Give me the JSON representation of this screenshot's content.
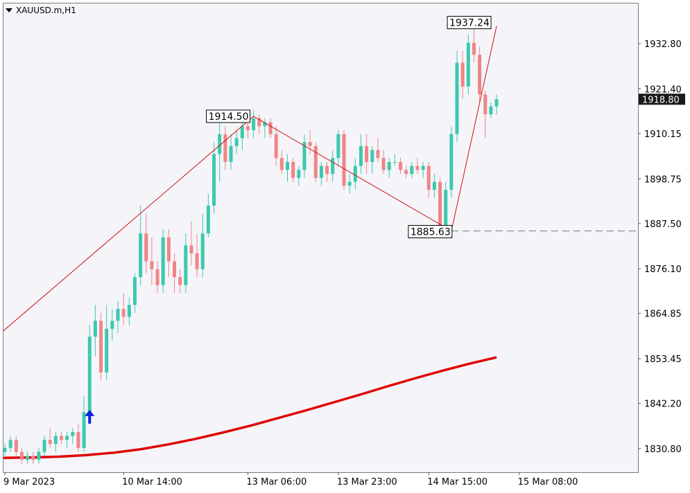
{
  "window": {
    "title": "XAUUSD.m,H1"
  },
  "colors": {
    "background": "#f4f4f9",
    "bull_candle": "#3cc9ad",
    "bear_candle": "#f08586",
    "moving_average": "#e00000",
    "zigzag": "#d01010",
    "current_price_bg": "#1a1a1a",
    "arrow": "#0a24d8",
    "level_line": "#7a7a7a"
  },
  "chart_data": {
    "type": "candlestick",
    "symbol": "XAUUSD.m",
    "timeframe": "H1",
    "ylim": [
      1824.5,
      1945.0
    ],
    "price_ticks": [
      "1932.80",
      "1921.40",
      "1910.15",
      "1898.75",
      "1887.50",
      "1876.10",
      "1864.85",
      "1853.45",
      "1842.20",
      "1830.80"
    ],
    "current_price": "1918.80",
    "time_labels": [
      {
        "label": "9 Mar 2023",
        "bar": 0
      },
      {
        "label": "10 Mar 14:00",
        "bar": 21
      },
      {
        "label": "13 Mar 06:00",
        "bar": 43
      },
      {
        "label": "13 Mar 23:00",
        "bar": 59
      },
      {
        "label": "14 Mar 15:00",
        "bar": 75
      },
      {
        "label": "15 Mar 08:00",
        "bar": 91
      }
    ],
    "candles": [
      [
        1830,
        1832,
        1829,
        1831
      ],
      [
        1831,
        1834,
        1830,
        1833
      ],
      [
        1833,
        1834,
        1829,
        1830
      ],
      [
        1830,
        1831,
        1827,
        1828
      ],
      [
        1828,
        1830,
        1827,
        1829
      ],
      [
        1829,
        1830,
        1827,
        1828
      ],
      [
        1828,
        1831,
        1827,
        1830
      ],
      [
        1830,
        1834,
        1829,
        1833
      ],
      [
        1833,
        1836,
        1831,
        1832
      ],
      [
        1832,
        1835,
        1830,
        1834
      ],
      [
        1834,
        1835,
        1832,
        1833
      ],
      [
        1833,
        1835,
        1831,
        1834
      ],
      [
        1834,
        1836,
        1832,
        1835
      ],
      [
        1835,
        1837,
        1830,
        1831
      ],
      [
        1831,
        1844,
        1830,
        1840
      ],
      [
        1840,
        1862,
        1838,
        1859
      ],
      [
        1859,
        1867,
        1854,
        1863
      ],
      [
        1863,
        1865,
        1848,
        1850
      ],
      [
        1850,
        1867,
        1848,
        1861
      ],
      [
        1861,
        1866,
        1858,
        1863
      ],
      [
        1863,
        1868,
        1860,
        1866
      ],
      [
        1866,
        1870,
        1862,
        1864
      ],
      [
        1864,
        1869,
        1862,
        1867
      ],
      [
        1867,
        1875,
        1865,
        1874
      ],
      [
        1874,
        1892,
        1872,
        1885
      ],
      [
        1885,
        1890,
        1875,
        1878
      ],
      [
        1878,
        1884,
        1872,
        1876
      ],
      [
        1876,
        1878,
        1870,
        1872
      ],
      [
        1872,
        1886,
        1870,
        1884
      ],
      [
        1884,
        1886,
        1874,
        1878
      ],
      [
        1878,
        1880,
        1870,
        1874
      ],
      [
        1874,
        1876,
        1870,
        1872
      ],
      [
        1872,
        1885,
        1870,
        1882
      ],
      [
        1882,
        1888,
        1877,
        1880
      ],
      [
        1880,
        1885,
        1874,
        1876
      ],
      [
        1876,
        1890,
        1874,
        1885
      ],
      [
        1885,
        1895,
        1884,
        1892
      ],
      [
        1892,
        1908,
        1890,
        1905
      ],
      [
        1905,
        1913,
        1898,
        1910
      ],
      [
        1910,
        1912,
        1901,
        1903
      ],
      [
        1903,
        1910,
        1901,
        1907
      ],
      [
        1907,
        1911,
        1905,
        1909
      ],
      [
        1909,
        1914,
        1906,
        1912
      ],
      [
        1912,
        1914.5,
        1909,
        1911
      ],
      [
        1911,
        1916,
        1909,
        1914
      ],
      [
        1914,
        1915,
        1910,
        1912
      ],
      [
        1912,
        1914,
        1909,
        1913
      ],
      [
        1913,
        1914,
        1909,
        1910
      ],
      [
        1910,
        1912,
        1902,
        1904
      ],
      [
        1904,
        1906,
        1900,
        1901
      ],
      [
        1901,
        1905,
        1898,
        1903
      ],
      [
        1903,
        1904,
        1898,
        1899
      ],
      [
        1899,
        1902,
        1897,
        1901
      ],
      [
        1901,
        1910,
        1899,
        1908
      ],
      [
        1908,
        1911,
        1905,
        1907
      ],
      [
        1907,
        1908,
        1898,
        1899
      ],
      [
        1899,
        1903,
        1897,
        1902
      ],
      [
        1902,
        1903,
        1898,
        1900
      ],
      [
        1900,
        1906,
        1898,
        1904
      ],
      [
        1904,
        1911,
        1902,
        1910
      ],
      [
        1910,
        1911,
        1896,
        1897
      ],
      [
        1897,
        1900,
        1895,
        1898
      ],
      [
        1898,
        1904,
        1896,
        1902
      ],
      [
        1902,
        1910,
        1900,
        1907
      ],
      [
        1907,
        1910,
        1900,
        1903
      ],
      [
        1903,
        1907,
        1900,
        1906
      ],
      [
        1906,
        1909,
        1903,
        1904
      ],
      [
        1904,
        1906,
        1900,
        1901
      ],
      [
        1901,
        1904,
        1899,
        1903
      ],
      [
        1903,
        1905,
        1902,
        1903
      ],
      [
        1903,
        1904,
        1900,
        1901
      ],
      [
        1901,
        1902,
        1899,
        1900
      ],
      [
        1900,
        1903,
        1899,
        1902
      ],
      [
        1902,
        1904,
        1900,
        1901
      ],
      [
        1901,
        1903,
        1899,
        1902
      ],
      [
        1902,
        1903,
        1894,
        1896
      ],
      [
        1896,
        1900,
        1894,
        1898
      ],
      [
        1898,
        1899,
        1885.6,
        1887
      ],
      [
        1887,
        1898,
        1886,
        1896
      ],
      [
        1896,
        1912,
        1894,
        1910
      ],
      [
        1910,
        1931,
        1908,
        1928
      ],
      [
        1928,
        1931,
        1919,
        1922
      ],
      [
        1922,
        1935,
        1920,
        1933
      ],
      [
        1933,
        1937.2,
        1928,
        1930
      ],
      [
        1930,
        1932,
        1918,
        1920
      ],
      [
        1920,
        1921,
        1909,
        1915
      ],
      [
        1915,
        1918,
        1914,
        1917
      ],
      [
        1917,
        1920,
        1915,
        1918.8
      ]
    ],
    "moving_average": [
      1828.5,
      1828.6,
      1828.8,
      1829.2,
      1829.8,
      1830.7,
      1831.9,
      1833.3,
      1834.9,
      1836.6,
      1838.5,
      1840.4,
      1842.4,
      1844.4,
      1846.5,
      1848.5,
      1850.4,
      1852.2,
      1853.8
    ],
    "zigzag": [
      {
        "bar": -1,
        "price": 1860.5
      },
      {
        "bar": 44,
        "price": 1914.5
      },
      {
        "bar": 79,
        "price": 1885.63
      },
      {
        "bar": 87,
        "price": 1937.24
      }
    ],
    "zigzag_labels": [
      {
        "bar": 44,
        "price": 1914.5,
        "text": "1914.50"
      },
      {
        "bar": 79,
        "price": 1885.63,
        "text": "1885.63"
      },
      {
        "bar": 87,
        "price": 1937.24,
        "text": "1937.24"
      }
    ],
    "horizontal_level": 1885.63,
    "signal_arrow": {
      "bar": 15,
      "price": 1838.5,
      "direction": "up"
    }
  }
}
